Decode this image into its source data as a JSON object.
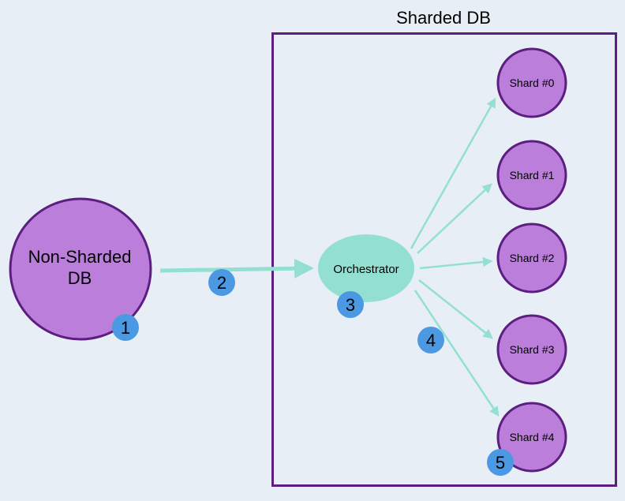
{
  "colors": {
    "background": "#e8eef5",
    "node_fill": "#bb7fdb",
    "node_stroke": "#5c1e80",
    "container_stroke": "#5c1e80",
    "orchestrator_fill": "#93e0d2",
    "arrow": "#93e0d2",
    "badge_fill": "#4a99e2"
  },
  "container": {
    "title": "Sharded DB"
  },
  "source": {
    "line1": "Non-Sharded",
    "line2": "DB"
  },
  "orchestrator": {
    "label": "Orchestrator"
  },
  "shards": [
    {
      "label": "Shard #0"
    },
    {
      "label": "Shard #1"
    },
    {
      "label": "Shard #2"
    },
    {
      "label": "Shard #3"
    },
    {
      "label": "Shard #4"
    }
  ],
  "steps": [
    "1",
    "2",
    "3",
    "4",
    "5"
  ]
}
